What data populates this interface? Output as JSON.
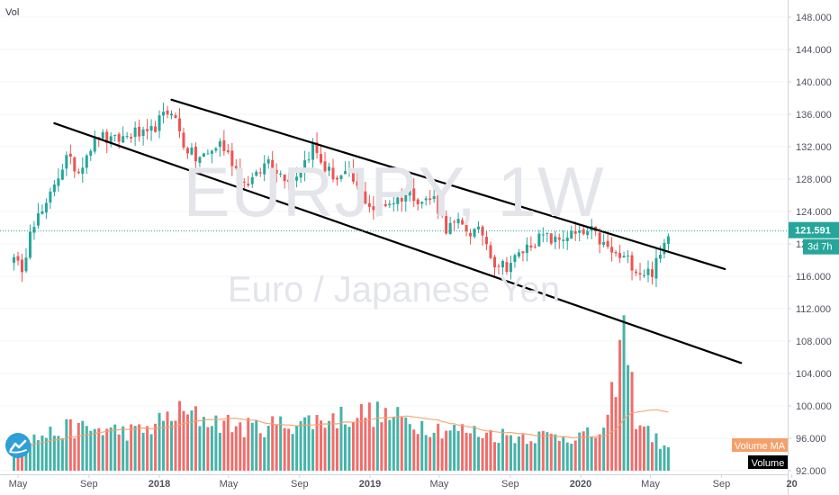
{
  "chart_data": {
    "type": "candlestick",
    "symbol": "EURJPY",
    "interval": "1W",
    "description": "Euro / Japanese Yen",
    "volume_label": "Vol",
    "price_axis": {
      "range": [
        90.0,
        149.0
      ],
      "ticks": [
        "148.000",
        "144.000",
        "140.000",
        "136.000",
        "132.000",
        "128.000",
        "124.000",
        "120.000",
        "116.000",
        "112.000",
        "108.000",
        "104.000",
        "100.000",
        "96.000",
        "92.000"
      ]
    },
    "time_axis": {
      "labels": [
        "May",
        "Sep",
        "2018",
        "May",
        "Sep",
        "2019",
        "May",
        "Sep",
        "2020",
        "May",
        "Sep",
        "20"
      ]
    },
    "last_price": "121.591",
    "countdown": "3d 7h",
    "legend": {
      "volume_ma": "Volume MA",
      "volume": "Volume"
    },
    "colors": {
      "up": "#26a69a",
      "down": "#ef5350",
      "up_volume": "#26a69a",
      "down_volume": "#ef5350",
      "volume_ma": "#f5a06a",
      "price_line": "#26a69a",
      "trendline": "#000000",
      "watermark": "#e3e5ea"
    },
    "channel": {
      "upper": [
        [
          "2018-01-22",
          137.8
        ],
        [
          "2020-09-07",
          116.9
        ]
      ],
      "lower": [
        [
          "2017-07-03",
          134.9
        ],
        [
          "2020-10-05",
          105.3
        ]
      ]
    },
    "close_path": [
      [
        "2017-04-24",
        119.0
      ],
      [
        "2017-05-08",
        115.8
      ],
      [
        "2017-05-22",
        122.3
      ],
      [
        "2017-06-19",
        124.4
      ],
      [
        "2017-07-03",
        127.6
      ],
      [
        "2017-07-24",
        130.5
      ],
      [
        "2017-08-14",
        129.0
      ],
      [
        "2017-08-28",
        131.3
      ],
      [
        "2017-09-18",
        133.4
      ],
      [
        "2017-10-09",
        132.6
      ],
      [
        "2017-10-30",
        133.1
      ],
      [
        "2017-11-20",
        133.7
      ],
      [
        "2017-12-11",
        133.2
      ],
      [
        "2018-01-01",
        135.2
      ],
      [
        "2018-01-22",
        136.7
      ],
      [
        "2018-02-12",
        132.3
      ],
      [
        "2018-03-05",
        130.5
      ],
      [
        "2018-03-26",
        131.0
      ],
      [
        "2018-04-16",
        132.5
      ],
      [
        "2018-05-07",
        130.2
      ],
      [
        "2018-05-28",
        127.5
      ],
      [
        "2018-06-18",
        128.2
      ],
      [
        "2018-07-09",
        130.5
      ],
      [
        "2018-07-30",
        128.6
      ],
      [
        "2018-08-20",
        128.0
      ],
      [
        "2018-09-10",
        130.2
      ],
      [
        "2018-09-24",
        132.0
      ],
      [
        "2018-10-15",
        129.3
      ],
      [
        "2018-11-05",
        128.1
      ],
      [
        "2018-11-26",
        128.5
      ],
      [
        "2018-12-17",
        126.0
      ],
      [
        "2019-01-07",
        124.3
      ],
      [
        "2019-01-28",
        125.0
      ],
      [
        "2019-02-18",
        125.5
      ],
      [
        "2019-03-11",
        126.4
      ],
      [
        "2019-04-01",
        125.3
      ],
      [
        "2019-04-22",
        125.6
      ],
      [
        "2019-05-13",
        122.0
      ],
      [
        "2019-06-03",
        122.4
      ],
      [
        "2019-06-24",
        121.5
      ],
      [
        "2019-07-15",
        121.3
      ],
      [
        "2019-08-05",
        117.7
      ],
      [
        "2019-08-26",
        117.3
      ],
      [
        "2019-09-16",
        118.6
      ],
      [
        "2019-10-07",
        120.1
      ],
      [
        "2019-10-28",
        120.9
      ],
      [
        "2019-11-18",
        120.3
      ],
      [
        "2019-12-09",
        121.1
      ],
      [
        "2019-12-30",
        121.0
      ],
      [
        "2020-01-20",
        121.5
      ],
      [
        "2020-02-10",
        119.8
      ],
      [
        "2020-03-02",
        118.5
      ],
      [
        "2020-03-23",
        118.0
      ],
      [
        "2020-04-13",
        116.5
      ],
      [
        "2020-05-04",
        116.6
      ],
      [
        "2020-05-18",
        118.5
      ],
      [
        "2020-06-01",
        121.6
      ]
    ],
    "volume_path": [
      [
        "2017-04-24",
        3.5
      ],
      [
        "2017-08-01",
        5.5
      ],
      [
        "2017-12-01",
        5.0
      ],
      [
        "2018-02-01",
        7.5
      ],
      [
        "2018-06-01",
        5.5
      ],
      [
        "2018-10-01",
        6.5
      ],
      [
        "2019-01-01",
        7.5
      ],
      [
        "2019-05-01",
        5.5
      ],
      [
        "2019-09-01",
        4.5
      ],
      [
        "2020-01-15",
        4.5
      ],
      [
        "2020-02-15",
        5.0
      ],
      [
        "2020-03-01",
        12.0
      ],
      [
        "2020-03-16",
        18.0
      ],
      [
        "2020-04-06",
        7.0
      ],
      [
        "2020-05-04",
        4.5
      ],
      [
        "2020-06-01",
        2.5
      ]
    ]
  }
}
